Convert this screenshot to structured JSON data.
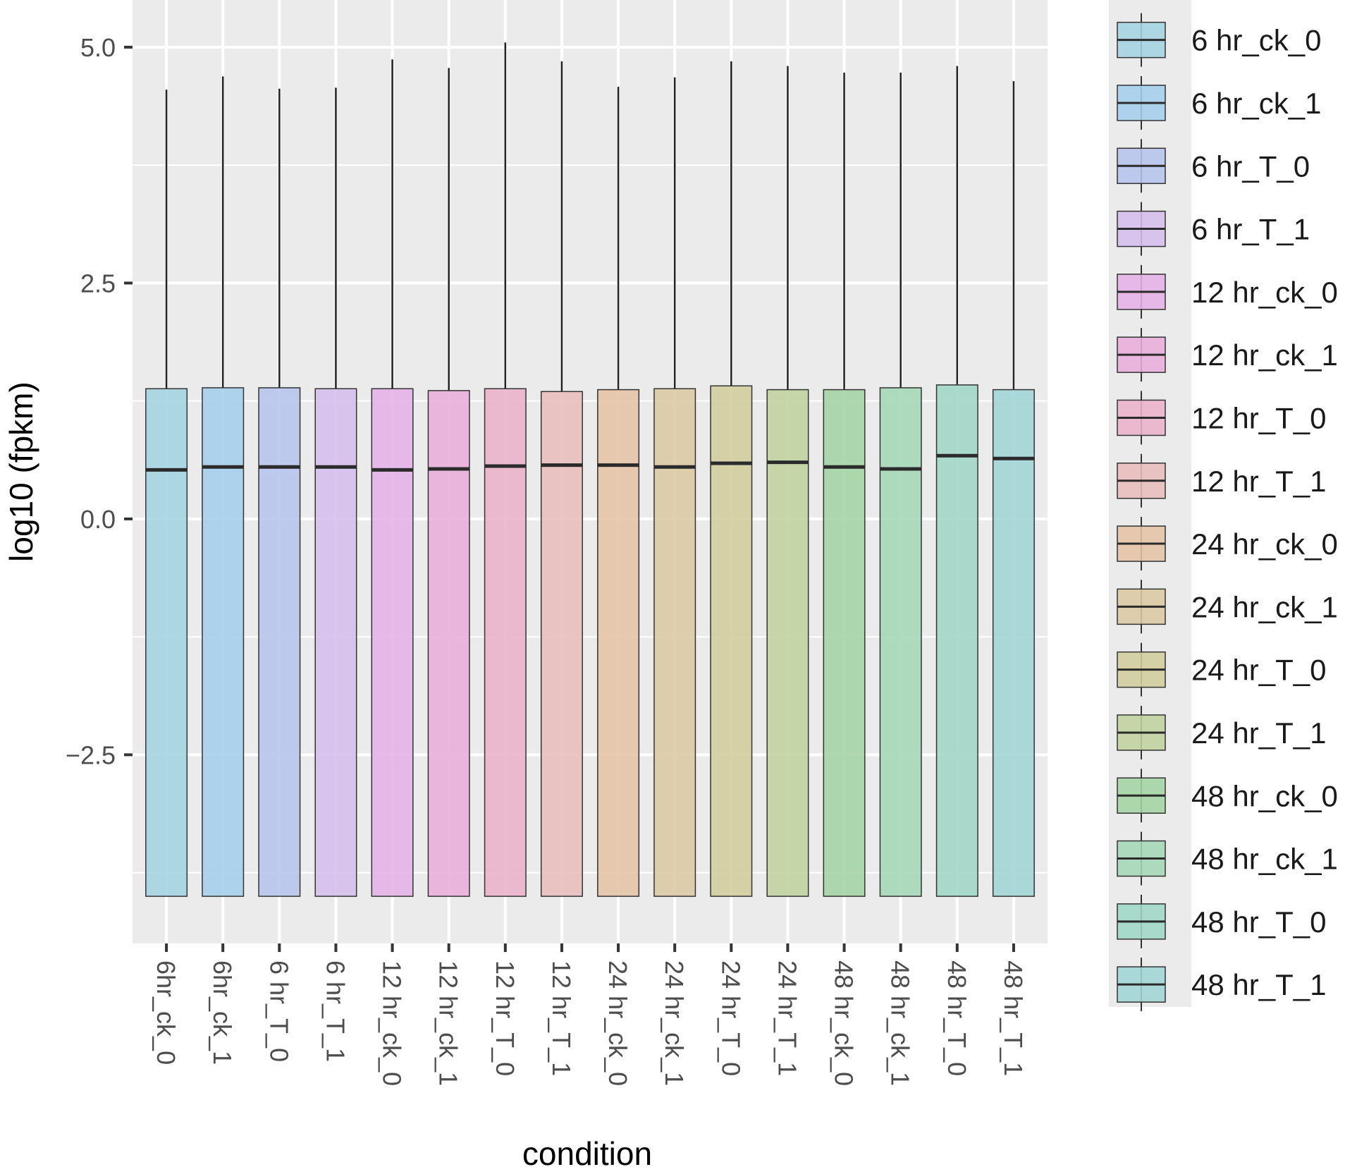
{
  "chart_data": {
    "type": "boxplot",
    "xlabel": "condition",
    "ylabel": "log10 (fpkm)",
    "ylim": [
      -4.5,
      5.5
    ],
    "y_ticks": [
      {
        "value": 5.0,
        "label": "5.0"
      },
      {
        "value": 2.5,
        "label": "2.5"
      },
      {
        "value": 0.0,
        "label": "0.0"
      },
      {
        "value": -2.5,
        "label": "−2.5"
      }
    ],
    "grid": true,
    "legend_position": "right",
    "categories": [
      "6hr_ck_0",
      "6hr_ck_1",
      "6 hr_T_0",
      "6 hr_T_1",
      "12 hr_ck_0",
      "12 hr_ck_1",
      "12 hr_T_0",
      "12 hr_T_1",
      "24 hr_ck_0",
      "24 hr_ck_1",
      "24 hr_T_0",
      "24 hr_T_1",
      "48 hr_ck_0",
      "48 hr_ck_1",
      "48 hr_T_0",
      "48 hr_T_1"
    ],
    "series": [
      {
        "name": "6 hr_ck_0",
        "color": "#a3d3e0",
        "q1": -4.0,
        "median": 0.52,
        "q3": 1.38,
        "upper_whisker": 4.55
      },
      {
        "name": "6 hr_ck_1",
        "color": "#a3cfea",
        "q1": -4.0,
        "median": 0.55,
        "q3": 1.39,
        "upper_whisker": 4.69
      },
      {
        "name": "6 hr_T_0",
        "color": "#b5c3ec",
        "q1": -4.0,
        "median": 0.55,
        "q3": 1.39,
        "upper_whisker": 4.56
      },
      {
        "name": "6 hr_T_1",
        "color": "#d5bdec",
        "q1": -4.0,
        "median": 0.55,
        "q3": 1.38,
        "upper_whisker": 4.57
      },
      {
        "name": "12 hr_ck_0",
        "color": "#e4b1e6",
        "q1": -4.0,
        "median": 0.52,
        "q3": 1.38,
        "upper_whisker": 4.87
      },
      {
        "name": "12 hr_ck_1",
        "color": "#e9addb",
        "q1": -4.0,
        "median": 0.53,
        "q3": 1.36,
        "upper_whisker": 4.78
      },
      {
        "name": "12 hr_T_0",
        "color": "#ebb2ca",
        "q1": -4.0,
        "median": 0.56,
        "q3": 1.38,
        "upper_whisker": 5.05
      },
      {
        "name": "12 hr_T_1",
        "color": "#e8bcbc",
        "q1": -4.0,
        "median": 0.57,
        "q3": 1.35,
        "upper_whisker": 4.85
      },
      {
        "name": "24 hr_ck_0",
        "color": "#e4c3a5",
        "q1": -4.0,
        "median": 0.57,
        "q3": 1.37,
        "upper_whisker": 4.58
      },
      {
        "name": "24 hr_ck_1",
        "color": "#dcc8a3",
        "q1": -4.0,
        "median": 0.55,
        "q3": 1.38,
        "upper_whisker": 4.68
      },
      {
        "name": "24 hr_T_0",
        "color": "#d2cd9d",
        "q1": -4.0,
        "median": 0.59,
        "q3": 1.41,
        "upper_whisker": 4.85
      },
      {
        "name": "24 hr_T_1",
        "color": "#bfd19e",
        "q1": -4.0,
        "median": 0.6,
        "q3": 1.37,
        "upper_whisker": 4.8
      },
      {
        "name": "48 hr_ck_0",
        "color": "#a3d3a2",
        "q1": -4.0,
        "median": 0.55,
        "q3": 1.37,
        "upper_whisker": 4.73
      },
      {
        "name": "48 hr_ck_1",
        "color": "#a4d6b6",
        "q1": -4.0,
        "median": 0.53,
        "q3": 1.39,
        "upper_whisker": 4.73
      },
      {
        "name": "48 hr_T_0",
        "color": "#9ed6c6",
        "q1": -4.0,
        "median": 0.67,
        "q3": 1.42,
        "upper_whisker": 4.8
      },
      {
        "name": "48 hr_T_1",
        "color": "#a0d4d4",
        "q1": -4.0,
        "median": 0.64,
        "q3": 1.37,
        "upper_whisker": 4.64
      }
    ]
  }
}
